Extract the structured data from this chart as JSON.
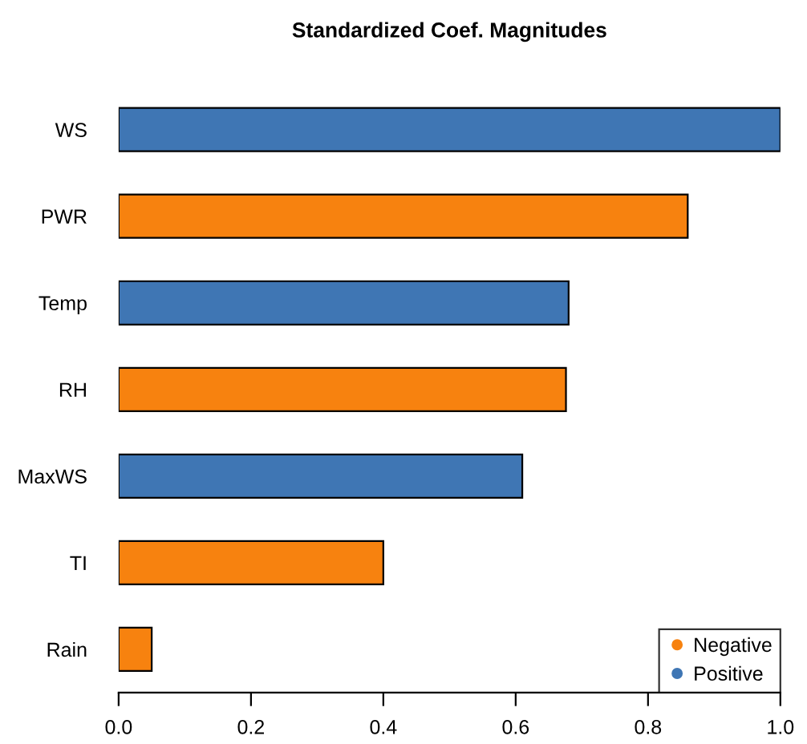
{
  "chart_data": {
    "type": "bar",
    "orientation": "horizontal",
    "title": "Standardized Coef. Magnitudes",
    "categories": [
      "WS",
      "PWR",
      "Temp",
      "RH",
      "MaxWS",
      "TI",
      "Rain"
    ],
    "series": [
      {
        "name": "Negative",
        "color": "#f7820f",
        "values": [
          null,
          0.86,
          null,
          0.676,
          null,
          0.4,
          0.05
        ]
      },
      {
        "name": "Positive",
        "color": "#3f76b4",
        "values": [
          1.0,
          null,
          0.68,
          null,
          0.61,
          null,
          null
        ]
      }
    ],
    "xlim": [
      0,
      1.0
    ],
    "xticks": [
      {
        "value": 0,
        "label": "0.0"
      },
      {
        "value": 0.2,
        "label": "0.2"
      },
      {
        "value": 0.4,
        "label": "0.4"
      },
      {
        "value": 0.6,
        "label": "0.6"
      },
      {
        "value": 0.8,
        "label": "0.8"
      },
      {
        "value": 1.0,
        "label": "1.0"
      }
    ],
    "legend": "bottom right",
    "grid": false
  }
}
